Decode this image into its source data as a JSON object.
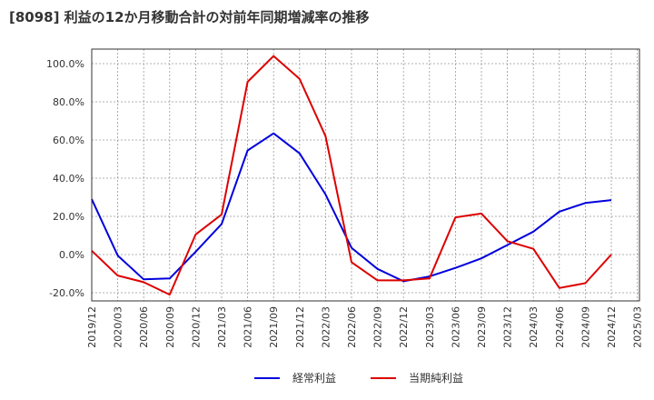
{
  "chart_data": {
    "type": "line",
    "title": "[8098]  利益の12か月移動合計の対前年同期増減率の推移",
    "x": [
      "2019/12",
      "2020/03",
      "2020/06",
      "2020/09",
      "2020/12",
      "2021/03",
      "2021/06",
      "2021/09",
      "2021/12",
      "2022/03",
      "2022/06",
      "2022/09",
      "2022/12",
      "2023/03",
      "2023/06",
      "2023/09",
      "2023/12",
      "2024/03",
      "2024/06",
      "2024/09",
      "2024/12",
      "2025/03"
    ],
    "ylim": [
      -20,
      100
    ],
    "yticks": [
      -20,
      0,
      20,
      40,
      60,
      80,
      100
    ],
    "ytick_labels": [
      "-20.0%",
      "0.0%",
      "20.0%",
      "40.0%",
      "60.0%",
      "80.0%",
      "100.0%"
    ],
    "grid": true,
    "legend_position": "bottom",
    "series": [
      {
        "name": "経常利益",
        "color": "#0000dd",
        "values": [
          29,
          -0.5,
          -13,
          -12.5,
          1.5,
          16,
          54.5,
          63.5,
          53,
          31.5,
          3.5,
          -7.5,
          -14,
          -11.5,
          -7,
          -2,
          5,
          12,
          22.5,
          27,
          28.5,
          null
        ]
      },
      {
        "name": "当期純利益",
        "color": "#dd0000",
        "values": [
          2,
          -11,
          -14.5,
          -21,
          10.5,
          21,
          90.5,
          104,
          92,
          62,
          -4,
          -13.5,
          -13.5,
          -12.5,
          19.5,
          21.5,
          7,
          3,
          -17.5,
          -15,
          0,
          null
        ]
      }
    ]
  }
}
